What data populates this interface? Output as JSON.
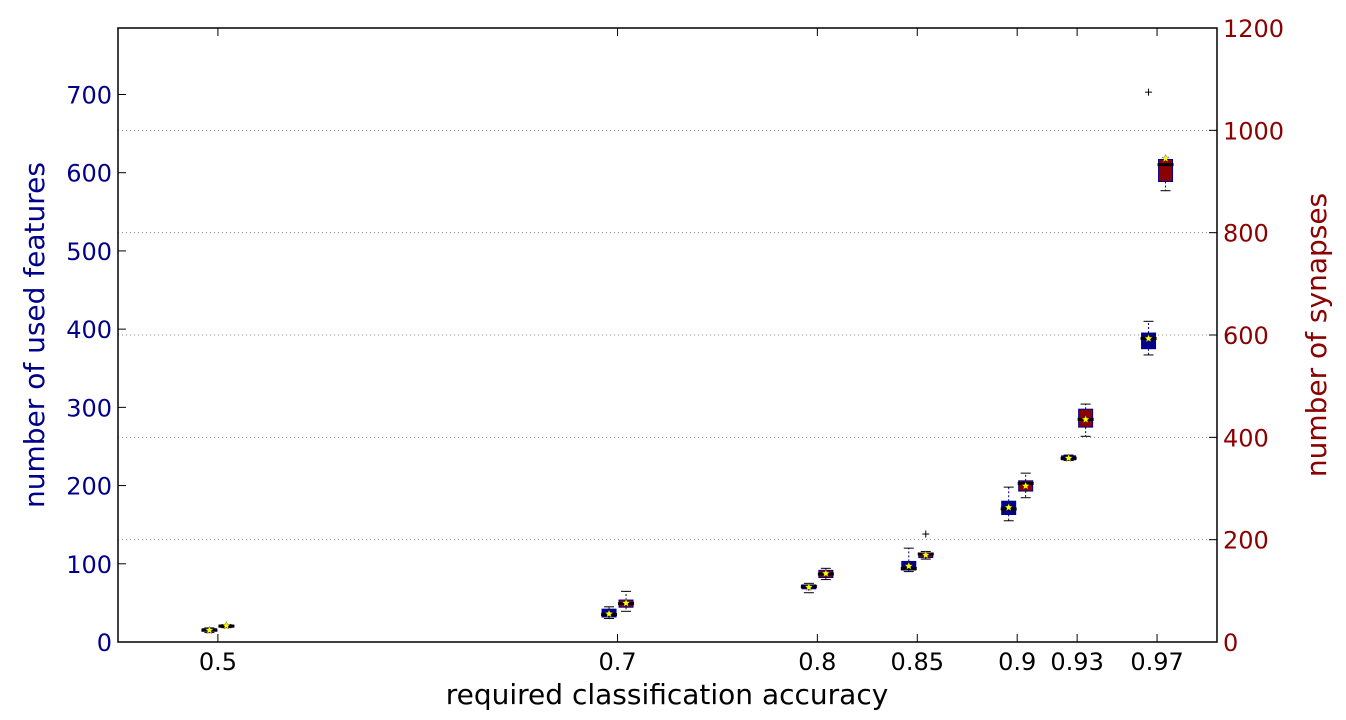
{
  "chart_data": {
    "type": "boxplot",
    "xlabel": "required classification accuracy",
    "ylabel_left": "number of used features",
    "ylabel_right": "number of synapses",
    "ylim_left": [
      0,
      785
    ],
    "ylim_right": [
      0,
      1200
    ],
    "xlim": [
      0.45,
      1.0
    ],
    "left_ticks": [
      0,
      100,
      200,
      300,
      400,
      500,
      600,
      700
    ],
    "right_ticks": [
      0,
      200,
      400,
      600,
      800,
      1000,
      1200
    ],
    "x_ticks": [
      {
        "value": 0.5,
        "label": "0.5"
      },
      {
        "value": 0.7,
        "label": "0.7"
      },
      {
        "value": 0.8,
        "label": "0.8"
      },
      {
        "value": 0.85,
        "label": "0.85"
      },
      {
        "value": 0.9,
        "label": "0.9"
      },
      {
        "value": 0.93,
        "label": "0.93"
      },
      {
        "value": 0.97,
        "label": "0.97"
      }
    ],
    "grid": "right-axis horizontal dotted",
    "colors": {
      "features": "#00008b",
      "synapses": "#8b0000",
      "median": "#000000",
      "mean_marker": "#ffff00",
      "left_axis_text": "#00008b",
      "right_axis_text": "#8b0000",
      "grid": "#888888"
    },
    "series": [
      {
        "name": "features",
        "axis": "left",
        "boxes": [
          {
            "x": 0.5,
            "whislo": 12,
            "q1": 14,
            "med": 15,
            "q3": 17,
            "whishi": 18,
            "mean": 15,
            "fliers": []
          },
          {
            "x": 0.7,
            "whislo": 30,
            "q1": 32,
            "med": 35,
            "q3": 42,
            "whishi": 45,
            "mean": 36,
            "fliers": []
          },
          {
            "x": 0.8,
            "whislo": 63,
            "q1": 68,
            "med": 71,
            "q3": 73,
            "whishi": 75,
            "mean": 70,
            "fliers": []
          },
          {
            "x": 0.85,
            "whislo": 90,
            "q1": 92,
            "med": 94,
            "q3": 103,
            "whishi": 120,
            "mean": 97,
            "fliers": []
          },
          {
            "x": 0.9,
            "whislo": 155,
            "q1": 163,
            "med": 170,
            "q3": 180,
            "whishi": 198,
            "mean": 172,
            "fliers": []
          },
          {
            "x": 0.93,
            "whislo": 232,
            "q1": 233,
            "med": 235,
            "q3": 238,
            "whishi": 239,
            "mean": 235,
            "fliers": []
          },
          {
            "x": 0.97,
            "whislo": 367,
            "q1": 375,
            "med": 388,
            "q3": 395,
            "whishi": 410,
            "mean": 388,
            "fliers": [
              703
            ]
          }
        ]
      },
      {
        "name": "synapses",
        "axis": "right",
        "boxes": [
          {
            "x": 0.5,
            "whislo": 28,
            "q1": 30,
            "med": 31,
            "q3": 33,
            "whishi": 34,
            "mean": 32,
            "fliers": []
          },
          {
            "x": 0.7,
            "whislo": 60,
            "q1": 68,
            "med": 75,
            "q3": 82,
            "whishi": 99,
            "mean": 76,
            "fliers": []
          },
          {
            "x": 0.8,
            "whislo": 122,
            "q1": 126,
            "med": 133,
            "q3": 140,
            "whishi": 144,
            "mean": 134,
            "fliers": []
          },
          {
            "x": 0.85,
            "whislo": 162,
            "q1": 165,
            "med": 172,
            "q3": 174,
            "whishi": 177,
            "mean": 170,
            "fliers": [
              211
            ]
          },
          {
            "x": 0.9,
            "whislo": 282,
            "q1": 295,
            "med": 310,
            "q3": 315,
            "whishi": 330,
            "mean": 305,
            "fliers": []
          },
          {
            "x": 0.93,
            "whislo": 402,
            "q1": 420,
            "med": 435,
            "q3": 455,
            "whishi": 465,
            "mean": 435,
            "fliers": []
          },
          {
            "x": 0.97,
            "whislo": 882,
            "q1": 900,
            "med": 933,
            "q3": 943,
            "whishi": 943,
            "mean": 945,
            "fliers": []
          }
        ]
      }
    ]
  }
}
